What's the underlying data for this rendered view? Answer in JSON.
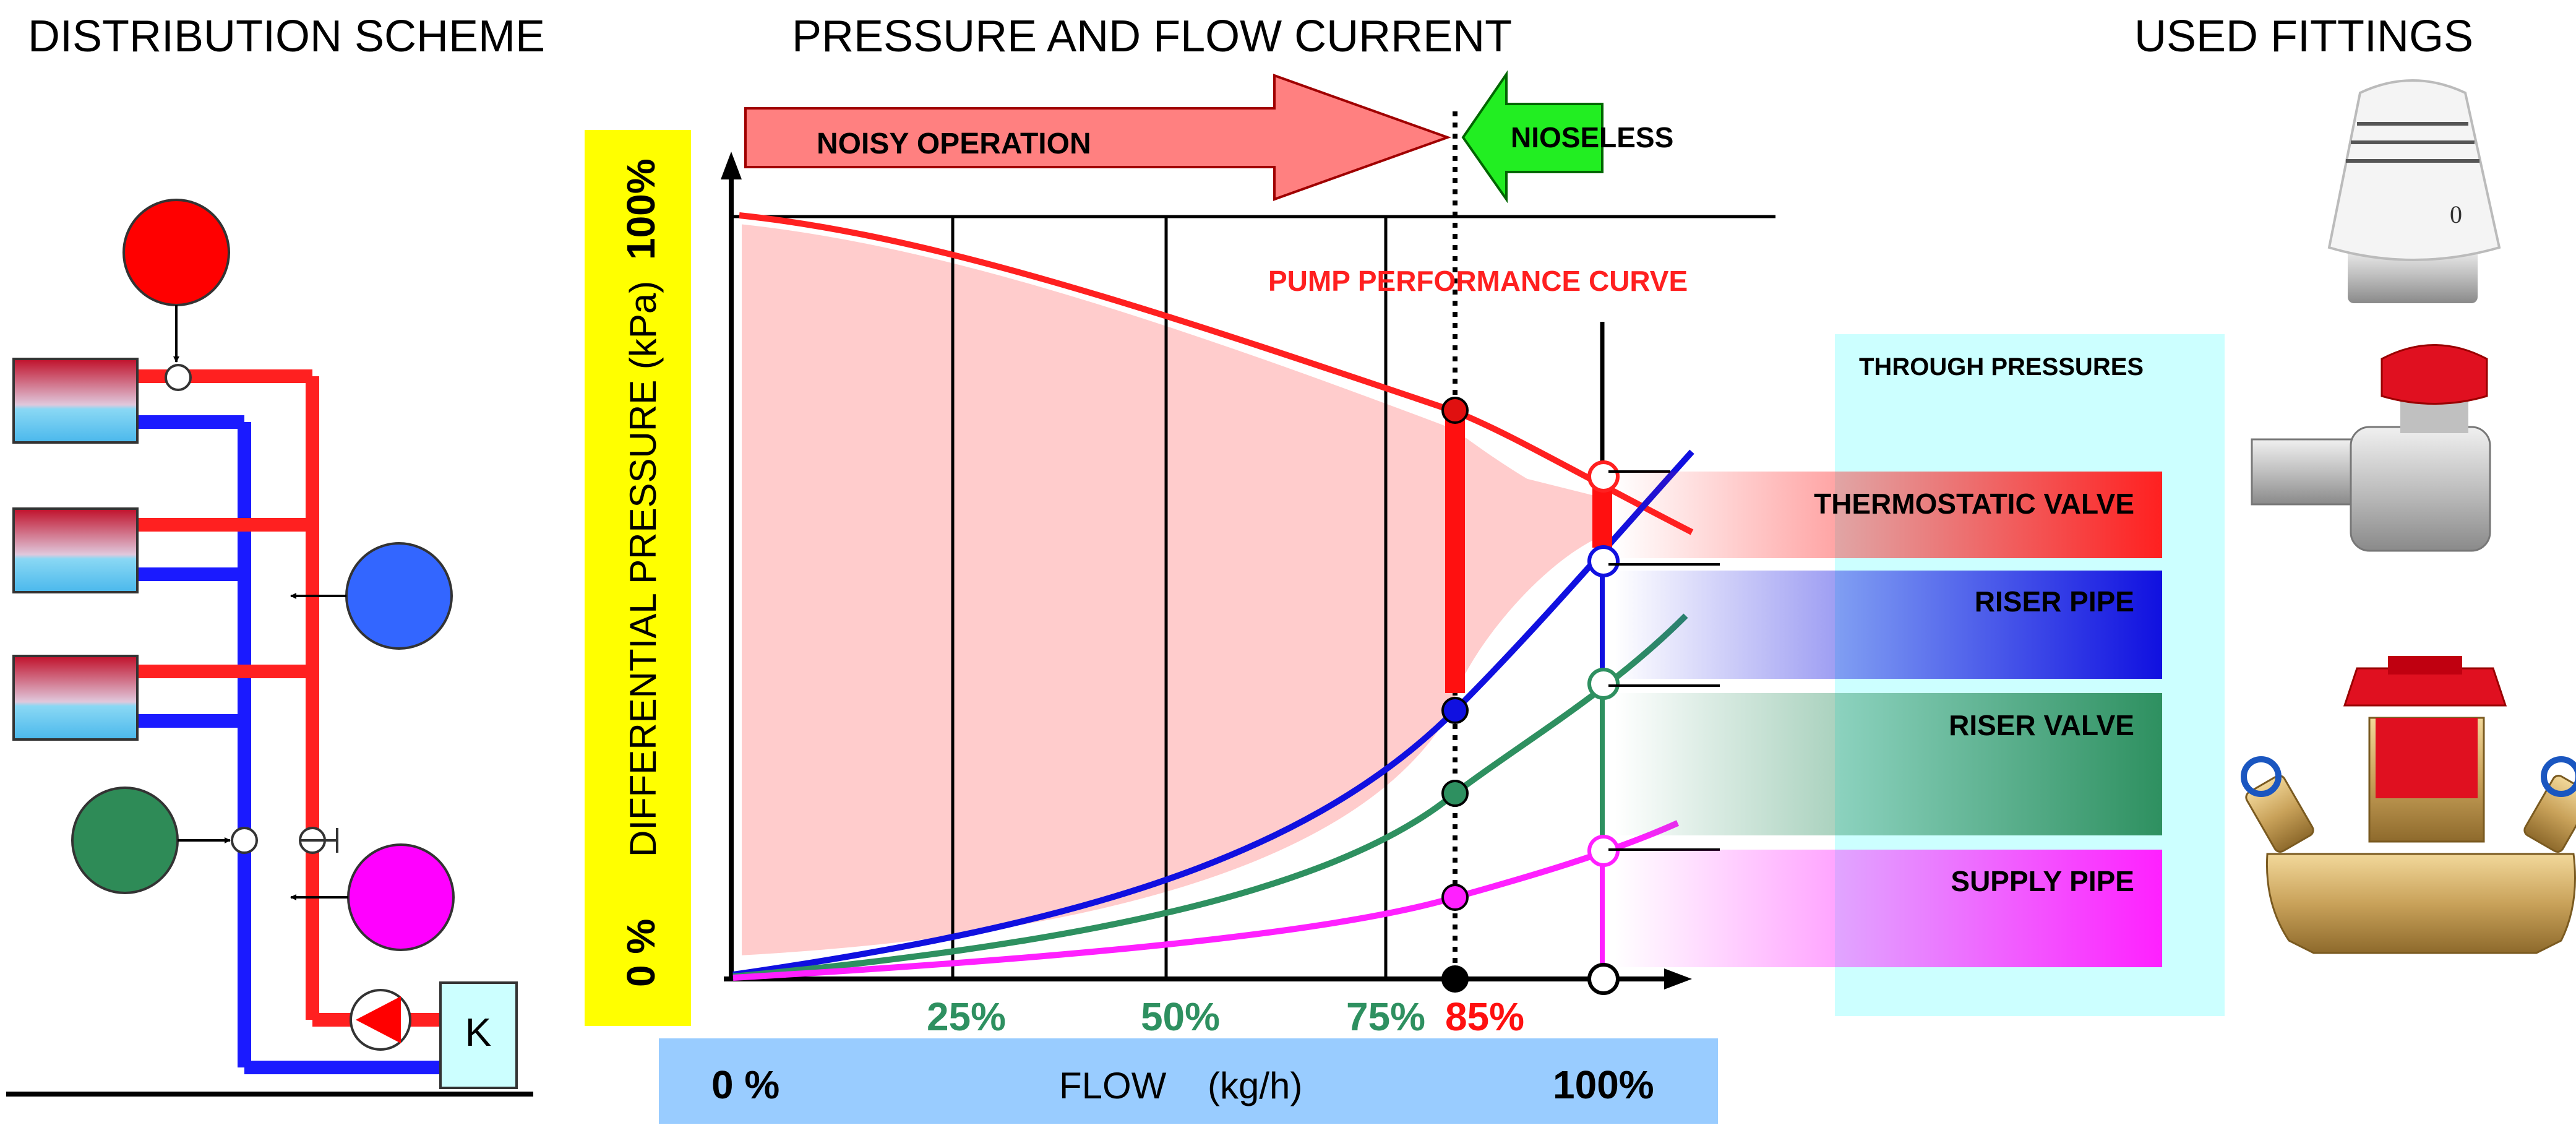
{
  "headers": {
    "distribution": "DISTRIBUTION SCHEME",
    "pressure_flow": "PRESSURE AND FLOW CURRENT",
    "fittings": "USED FITTINGS"
  },
  "arrows": {
    "noisy": "NOISY OPERATION",
    "noiseless": "NIOSELESS"
  },
  "axes": {
    "y_title": "DIFFERENTIAL PRESSURE  (kPa)",
    "y_top": "100%",
    "y_bottom": "0 %",
    "x_title": "FLOW    (kg/h)",
    "x_left": "0 %",
    "x_right": "100%"
  },
  "chart_data": {
    "type": "line",
    "x_ticks": [
      "25%",
      "50%",
      "75%",
      "85%"
    ],
    "operating_point": "85%",
    "curves": [
      {
        "name": "PUMP PERFORMANCE CURVE",
        "color": "#ff2020"
      },
      {
        "name": "RISER PIPE",
        "color": "#1010e0"
      },
      {
        "name": "RISER VALVE",
        "color": "#2e9060"
      },
      {
        "name": "SUPPLY PIPE",
        "color": "#ff20ff"
      }
    ]
  },
  "pressures": {
    "title": "THROUGH PRESSURES",
    "bands": [
      {
        "label": "THERMOSTATIC VALVE",
        "color": "#ff2020"
      },
      {
        "label": "RISER PIPE",
        "color": "#1010e0"
      },
      {
        "label": "RISER VALVE",
        "color": "#2e9060"
      },
      {
        "label": "SUPPLY PIPE",
        "color": "#ff20ff"
      }
    ]
  },
  "scheme": {
    "boiler_label": "K"
  },
  "colors": {
    "supply": "#ff2020",
    "return": "#1a1aff",
    "accent_yellow": "#ffff00",
    "flow_bar": "#99ccff",
    "pressure_box": "#ccffff"
  }
}
